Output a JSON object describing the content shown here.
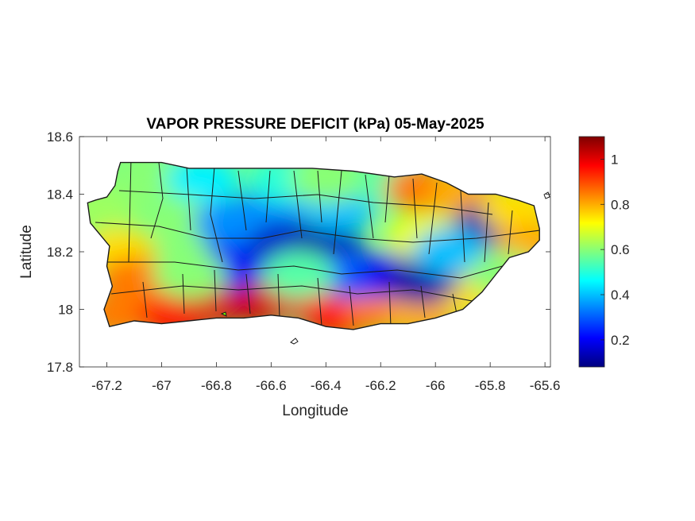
{
  "map": {
    "title": "VAPOR PRESSURE DEFICIT (kPa) 05-May-2025",
    "xlabel": "Longitude",
    "ylabel": "Latitude",
    "xlim": [
      -67.3,
      -65.58
    ],
    "ylim": [
      17.8,
      18.6
    ],
    "x_ticks": [
      "-67.2",
      "-67",
      "-66.8",
      "-66.6",
      "-66.4",
      "-66.2",
      "-66",
      "-65.8",
      "-65.6"
    ],
    "y_ticks": [
      "18.6",
      "18.4",
      "18.2",
      "18"
    ],
    "y_ticks_bottom": "17.8",
    "region": "Puerto Rico",
    "units": "kPa",
    "colormap": "jet",
    "colorbar": {
      "min": 0.08,
      "max": 1.1,
      "ticks": [
        "1",
        "0.8",
        "0.6",
        "0.4",
        "0.2"
      ],
      "colors": [
        "#00007f",
        "#0000ff",
        "#007fff",
        "#00ffff",
        "#7fff7f",
        "#ffff00",
        "#ff7f00",
        "#ff0000",
        "#7f0000"
      ]
    },
    "field_samples": [
      {
        "lon": -67.22,
        "lat": 18.35,
        "vpd": 0.62
      },
      {
        "lon": -67.15,
        "lat": 18.2,
        "vpd": 0.75
      },
      {
        "lon": -67.15,
        "lat": 17.98,
        "vpd": 0.85
      },
      {
        "lon": -67.0,
        "lat": 18.07,
        "vpd": 0.95
      },
      {
        "lon": -66.95,
        "lat": 17.98,
        "vpd": 0.95
      },
      {
        "lon": -66.8,
        "lat": 18.03,
        "vpd": 1.0
      },
      {
        "lon": -66.65,
        "lat": 18.03,
        "vpd": 1.02
      },
      {
        "lon": -66.5,
        "lat": 18.05,
        "vpd": 1.0
      },
      {
        "lon": -66.35,
        "lat": 17.98,
        "vpd": 0.95
      },
      {
        "lon": -66.2,
        "lat": 18.0,
        "vpd": 0.85
      },
      {
        "lon": -66.05,
        "lat": 17.98,
        "vpd": 0.8
      },
      {
        "lon": -65.85,
        "lat": 18.05,
        "vpd": 0.75
      },
      {
        "lon": -67.05,
        "lat": 18.45,
        "vpd": 0.6
      },
      {
        "lon": -66.85,
        "lat": 18.45,
        "vpd": 0.45
      },
      {
        "lon": -66.9,
        "lat": 18.3,
        "vpd": 0.6
      },
      {
        "lon": -66.75,
        "lat": 18.3,
        "vpd": 0.35
      },
      {
        "lon": -66.75,
        "lat": 18.15,
        "vpd": 0.2
      },
      {
        "lon": -66.6,
        "lat": 18.35,
        "vpd": 0.35
      },
      {
        "lon": -66.55,
        "lat": 18.22,
        "vpd": 0.15
      },
      {
        "lon": -66.4,
        "lat": 18.22,
        "vpd": 0.12
      },
      {
        "lon": -66.35,
        "lat": 18.35,
        "vpd": 0.4
      },
      {
        "lon": -66.3,
        "lat": 18.12,
        "vpd": 0.3
      },
      {
        "lon": -66.15,
        "lat": 18.12,
        "vpd": 0.2
      },
      {
        "lon": -66.05,
        "lat": 18.1,
        "vpd": 0.12
      },
      {
        "lon": -66.2,
        "lat": 18.45,
        "vpd": 0.55
      },
      {
        "lon": -66.05,
        "lat": 18.42,
        "vpd": 0.85
      },
      {
        "lon": -66.05,
        "lat": 18.25,
        "vpd": 0.7
      },
      {
        "lon": -65.9,
        "lat": 18.4,
        "vpd": 0.8
      },
      {
        "lon": -65.8,
        "lat": 18.29,
        "vpd": 0.12
      },
      {
        "lon": -65.95,
        "lat": 18.2,
        "vpd": 0.4
      },
      {
        "lon": -65.7,
        "lat": 18.35,
        "vpd": 0.75
      },
      {
        "lon": -65.65,
        "lat": 18.22,
        "vpd": 0.8
      },
      {
        "lon": -65.75,
        "lat": 18.12,
        "vpd": 0.6
      },
      {
        "lon": -66.55,
        "lat": 18.45,
        "vpd": 0.5
      },
      {
        "lon": -66.4,
        "lat": 18.45,
        "vpd": 0.6
      },
      {
        "lon": -67.1,
        "lat": 18.1,
        "vpd": 0.85
      },
      {
        "lon": -66.9,
        "lat": 18.12,
        "vpd": 0.6
      },
      {
        "lon": -66.5,
        "lat": 18.12,
        "vpd": 0.55
      }
    ],
    "coastline": [
      [
        -67.27,
        18.37
      ],
      [
        -67.24,
        18.38
      ],
      [
        -67.2,
        18.39
      ],
      [
        -67.17,
        18.43
      ],
      [
        -67.16,
        18.48
      ],
      [
        -67.15,
        18.51
      ],
      [
        -67.0,
        18.51
      ],
      [
        -66.9,
        18.49
      ],
      [
        -66.8,
        18.49
      ],
      [
        -66.6,
        18.49
      ],
      [
        -66.45,
        18.49
      ],
      [
        -66.3,
        18.48
      ],
      [
        -66.15,
        18.46
      ],
      [
        -66.05,
        18.47
      ],
      [
        -65.96,
        18.44
      ],
      [
        -65.88,
        18.4
      ],
      [
        -65.78,
        18.4
      ],
      [
        -65.7,
        18.38
      ],
      [
        -65.64,
        18.36
      ],
      [
        -65.62,
        18.28
      ],
      [
        -65.62,
        18.24
      ],
      [
        -65.66,
        18.2
      ],
      [
        -65.73,
        18.18
      ],
      [
        -65.78,
        18.12
      ],
      [
        -65.83,
        18.06
      ],
      [
        -65.9,
        18.0
      ],
      [
        -66.0,
        17.97
      ],
      [
        -66.1,
        17.95
      ],
      [
        -66.2,
        17.95
      ],
      [
        -66.3,
        17.93
      ],
      [
        -66.4,
        17.94
      ],
      [
        -66.5,
        17.97
      ],
      [
        -66.6,
        17.98
      ],
      [
        -66.7,
        17.97
      ],
      [
        -66.8,
        17.97
      ],
      [
        -66.9,
        17.96
      ],
      [
        -67.0,
        17.95
      ],
      [
        -67.1,
        17.96
      ],
      [
        -67.19,
        17.94
      ],
      [
        -67.21,
        18.0
      ],
      [
        -67.18,
        18.08
      ],
      [
        -67.2,
        18.15
      ],
      [
        -67.19,
        18.22
      ],
      [
        -67.26,
        18.3
      ]
    ]
  }
}
